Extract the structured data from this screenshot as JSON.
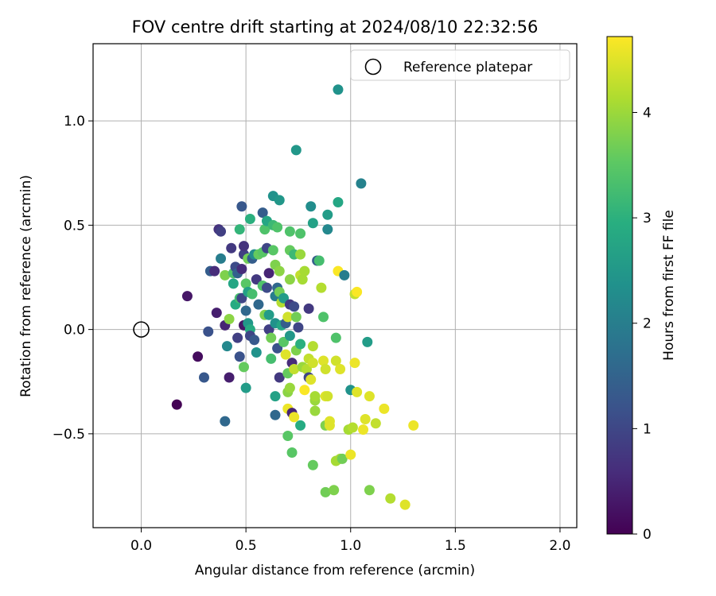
{
  "chart_data": {
    "type": "scatter",
    "title": "FOV centre drift starting at 2024/08/10 22:32:56",
    "xlabel": "Angular distance from reference (arcmin)",
    "ylabel": "Rotation from reference (arcmin)",
    "xlim": [
      -0.23,
      2.08
    ],
    "ylim": [
      -0.95,
      1.37
    ],
    "xticks": [
      0.0,
      0.5,
      1.0,
      1.5,
      2.0
    ],
    "xtick_labels": [
      "0.0",
      "0.5",
      "1.0",
      "1.5",
      "2.0"
    ],
    "yticks": [
      -0.5,
      0.0,
      0.5,
      1.0
    ],
    "ytick_labels": [
      "−0.5",
      "0.0",
      "0.5",
      "1.0"
    ],
    "grid": true,
    "legend": {
      "label": "Reference platepar",
      "placement": "top-right"
    },
    "reference_point": {
      "x": 0.0,
      "y": 0.0
    },
    "colorbar": {
      "label": "Hours from first FF file",
      "range": [
        0,
        4.72
      ],
      "ticks": [
        0,
        1,
        2,
        3,
        4
      ],
      "tick_labels": [
        "0",
        "1",
        "2",
        "3",
        "4"
      ],
      "colormap": "viridis"
    },
    "points": [
      {
        "x": 0.17,
        "y": -0.36,
        "c": 0.02
      },
      {
        "x": 0.22,
        "y": 0.16,
        "c": 0.3
      },
      {
        "x": 0.27,
        "y": -0.13,
        "c": 0.15
      },
      {
        "x": 0.3,
        "y": -0.23,
        "c": 1.3
      },
      {
        "x": 0.32,
        "y": -0.01,
        "c": 1.2
      },
      {
        "x": 0.33,
        "y": 0.28,
        "c": 1.4
      },
      {
        "x": 0.35,
        "y": 0.28,
        "c": 0.6
      },
      {
        "x": 0.36,
        "y": 0.08,
        "c": 0.4
      },
      {
        "x": 0.37,
        "y": 0.48,
        "c": 0.7
      },
      {
        "x": 0.38,
        "y": 0.47,
        "c": 0.9
      },
      {
        "x": 0.38,
        "y": 0.34,
        "c": 2.0
      },
      {
        "x": 0.4,
        "y": 0.26,
        "c": 3.8
      },
      {
        "x": 0.4,
        "y": 0.02,
        "c": 0.5
      },
      {
        "x": 0.4,
        "y": -0.44,
        "c": 1.6
      },
      {
        "x": 0.41,
        "y": -0.08,
        "c": 2.2
      },
      {
        "x": 0.42,
        "y": 0.05,
        "c": 3.9
      },
      {
        "x": 0.42,
        "y": -0.23,
        "c": 0.4
      },
      {
        "x": 0.43,
        "y": 0.39,
        "c": 0.8
      },
      {
        "x": 0.44,
        "y": 0.27,
        "c": 3.4
      },
      {
        "x": 0.44,
        "y": 0.22,
        "c": 2.8
      },
      {
        "x": 0.45,
        "y": 0.3,
        "c": 1.1
      },
      {
        "x": 0.45,
        "y": 0.12,
        "c": 2.9
      },
      {
        "x": 0.46,
        "y": 0.27,
        "c": 1.5
      },
      {
        "x": 0.46,
        "y": -0.04,
        "c": 0.9
      },
      {
        "x": 0.47,
        "y": 0.15,
        "c": 3.3
      },
      {
        "x": 0.47,
        "y": 0.48,
        "c": 3.1
      },
      {
        "x": 0.47,
        "y": -0.13,
        "c": 1.2
      },
      {
        "x": 0.48,
        "y": 0.59,
        "c": 1.3
      },
      {
        "x": 0.48,
        "y": 0.29,
        "c": 0.6
      },
      {
        "x": 0.48,
        "y": 0.15,
        "c": 1.0
      },
      {
        "x": 0.49,
        "y": 0.02,
        "c": 0.3
      },
      {
        "x": 0.49,
        "y": -0.18,
        "c": 3.6
      },
      {
        "x": 0.49,
        "y": 0.36,
        "c": 0.9
      },
      {
        "x": 0.49,
        "y": 0.4,
        "c": 0.7
      },
      {
        "x": 0.5,
        "y": -0.28,
        "c": 2.6
      },
      {
        "x": 0.5,
        "y": 0.22,
        "c": 3.5
      },
      {
        "x": 0.5,
        "y": 0.09,
        "c": 1.6
      },
      {
        "x": 0.51,
        "y": 0.34,
        "c": 3.7
      },
      {
        "x": 0.51,
        "y": 0.18,
        "c": 2.7
      },
      {
        "x": 0.51,
        "y": 0.03,
        "c": 2.5
      },
      {
        "x": 0.52,
        "y": 0.53,
        "c": 3.0
      },
      {
        "x": 0.52,
        "y": 0.0,
        "c": 2.9
      },
      {
        "x": 0.52,
        "y": -0.03,
        "c": 1.0
      },
      {
        "x": 0.53,
        "y": 0.34,
        "c": 1.4
      },
      {
        "x": 0.53,
        "y": 0.17,
        "c": 3.3
      },
      {
        "x": 0.54,
        "y": -0.05,
        "c": 1.3
      },
      {
        "x": 0.54,
        "y": 0.36,
        "c": 2.3
      },
      {
        "x": 0.55,
        "y": 0.24,
        "c": 0.8
      },
      {
        "x": 0.55,
        "y": -0.11,
        "c": 2.4
      },
      {
        "x": 0.56,
        "y": 0.36,
        "c": 3.6
      },
      {
        "x": 0.56,
        "y": 0.12,
        "c": 1.6
      },
      {
        "x": 0.58,
        "y": 0.37,
        "c": 3.5
      },
      {
        "x": 0.58,
        "y": 0.56,
        "c": 1.4
      },
      {
        "x": 0.58,
        "y": 0.21,
        "c": 3.4
      },
      {
        "x": 0.59,
        "y": 0.07,
        "c": 3.8
      },
      {
        "x": 0.59,
        "y": 0.48,
        "c": 3.4
      },
      {
        "x": 0.6,
        "y": 0.2,
        "c": 1.1
      },
      {
        "x": 0.6,
        "y": 0.39,
        "c": 1.0
      },
      {
        "x": 0.6,
        "y": 0.52,
        "c": 2.8
      },
      {
        "x": 0.61,
        "y": 0.07,
        "c": 2.6
      },
      {
        "x": 0.61,
        "y": 0.0,
        "c": 0.9
      },
      {
        "x": 0.61,
        "y": 0.27,
        "c": 0.5
      },
      {
        "x": 0.62,
        "y": -0.14,
        "c": 3.3
      },
      {
        "x": 0.62,
        "y": -0.04,
        "c": 3.7
      },
      {
        "x": 0.63,
        "y": 0.64,
        "c": 2.4
      },
      {
        "x": 0.63,
        "y": 0.5,
        "c": 3.2
      },
      {
        "x": 0.63,
        "y": 0.38,
        "c": 3.5
      },
      {
        "x": 0.64,
        "y": 0.31,
        "c": 3.8
      },
      {
        "x": 0.64,
        "y": 0.16,
        "c": 2.0
      },
      {
        "x": 0.64,
        "y": 0.03,
        "c": 2.4
      },
      {
        "x": 0.64,
        "y": -0.32,
        "c": 2.7
      },
      {
        "x": 0.64,
        "y": -0.41,
        "c": 1.6
      },
      {
        "x": 0.65,
        "y": 0.49,
        "c": 3.4
      },
      {
        "x": 0.65,
        "y": 0.2,
        "c": 1.6
      },
      {
        "x": 0.65,
        "y": -0.09,
        "c": 1.2
      },
      {
        "x": 0.66,
        "y": 0.62,
        "c": 2.5
      },
      {
        "x": 0.66,
        "y": 0.28,
        "c": 3.9
      },
      {
        "x": 0.66,
        "y": 0.18,
        "c": 3.7
      },
      {
        "x": 0.66,
        "y": -0.23,
        "c": 0.8
      },
      {
        "x": 0.67,
        "y": 0.13,
        "c": 4.2
      },
      {
        "x": 0.67,
        "y": 0.02,
        "c": 2.8
      },
      {
        "x": 0.68,
        "y": 0.15,
        "c": 2.6
      },
      {
        "x": 0.68,
        "y": -0.06,
        "c": 3.5
      },
      {
        "x": 0.69,
        "y": -0.12,
        "c": 4.5
      },
      {
        "x": 0.69,
        "y": 0.03,
        "c": 1.4
      },
      {
        "x": 0.7,
        "y": 0.06,
        "c": 4.4
      },
      {
        "x": 0.7,
        "y": -0.3,
        "c": 3.9
      },
      {
        "x": 0.7,
        "y": -0.21,
        "c": 3.6
      },
      {
        "x": 0.7,
        "y": -0.38,
        "c": 4.6
      },
      {
        "x": 0.7,
        "y": -0.51,
        "c": 3.5
      },
      {
        "x": 0.71,
        "y": 0.47,
        "c": 3.4
      },
      {
        "x": 0.71,
        "y": 0.38,
        "c": 3.6
      },
      {
        "x": 0.71,
        "y": 0.24,
        "c": 3.9
      },
      {
        "x": 0.71,
        "y": 0.12,
        "c": 0.8
      },
      {
        "x": 0.71,
        "y": -0.03,
        "c": 2.5
      },
      {
        "x": 0.71,
        "y": -0.28,
        "c": 4.0
      },
      {
        "x": 0.72,
        "y": -0.16,
        "c": 0.6
      },
      {
        "x": 0.72,
        "y": -0.4,
        "c": 0.5
      },
      {
        "x": 0.72,
        "y": -0.59,
        "c": 3.5
      },
      {
        "x": 0.73,
        "y": 0.36,
        "c": 3.2
      },
      {
        "x": 0.73,
        "y": 0.11,
        "c": 1.1
      },
      {
        "x": 0.73,
        "y": -0.19,
        "c": 4.3
      },
      {
        "x": 0.73,
        "y": -0.42,
        "c": 4.6
      },
      {
        "x": 0.74,
        "y": 0.86,
        "c": 2.5
      },
      {
        "x": 0.74,
        "y": 0.06,
        "c": 3.7
      },
      {
        "x": 0.74,
        "y": -0.1,
        "c": 3.8
      },
      {
        "x": 0.75,
        "y": 0.01,
        "c": 1.0
      },
      {
        "x": 0.76,
        "y": 0.46,
        "c": 3.4
      },
      {
        "x": 0.76,
        "y": 0.36,
        "c": 4.0
      },
      {
        "x": 0.76,
        "y": 0.26,
        "c": 4.3
      },
      {
        "x": 0.76,
        "y": -0.07,
        "c": 3.0
      },
      {
        "x": 0.76,
        "y": -0.46,
        "c": 2.9
      },
      {
        "x": 0.77,
        "y": -0.18,
        "c": 4.0
      },
      {
        "x": 0.77,
        "y": 0.24,
        "c": 4.1
      },
      {
        "x": 0.78,
        "y": 0.28,
        "c": 4.1
      },
      {
        "x": 0.78,
        "y": -0.29,
        "c": 4.7
      },
      {
        "x": 0.79,
        "y": -0.19,
        "c": 4.2
      },
      {
        "x": 0.8,
        "y": -0.14,
        "c": 4.3
      },
      {
        "x": 0.8,
        "y": 0.1,
        "c": 0.8
      },
      {
        "x": 0.8,
        "y": -0.23,
        "c": 1.0
      },
      {
        "x": 0.81,
        "y": 0.59,
        "c": 2.3
      },
      {
        "x": 0.81,
        "y": -0.24,
        "c": 4.5
      },
      {
        "x": 0.82,
        "y": -0.08,
        "c": 4.2
      },
      {
        "x": 0.82,
        "y": 0.51,
        "c": 2.7
      },
      {
        "x": 0.82,
        "y": -0.16,
        "c": 4.4
      },
      {
        "x": 0.82,
        "y": -0.65,
        "c": 3.6
      },
      {
        "x": 0.83,
        "y": -0.34,
        "c": 4.0
      },
      {
        "x": 0.83,
        "y": -0.39,
        "c": 4.0
      },
      {
        "x": 0.83,
        "y": -0.32,
        "c": 4.1
      },
      {
        "x": 0.84,
        "y": 0.33,
        "c": 1.4
      },
      {
        "x": 0.85,
        "y": 0.33,
        "c": 3.3
      },
      {
        "x": 0.86,
        "y": 0.2,
        "c": 4.2
      },
      {
        "x": 0.87,
        "y": 0.06,
        "c": 3.4
      },
      {
        "x": 0.87,
        "y": -0.15,
        "c": 4.5
      },
      {
        "x": 0.88,
        "y": -0.19,
        "c": 4.4
      },
      {
        "x": 0.88,
        "y": -0.32,
        "c": 4.5
      },
      {
        "x": 0.88,
        "y": -0.46,
        "c": 3.8
      },
      {
        "x": 0.88,
        "y": -0.78,
        "c": 3.7
      },
      {
        "x": 0.89,
        "y": -0.32,
        "c": 4.4
      },
      {
        "x": 0.89,
        "y": 0.55,
        "c": 2.6
      },
      {
        "x": 0.89,
        "y": 0.48,
        "c": 2.2
      },
      {
        "x": 0.9,
        "y": -0.46,
        "c": 4.5
      },
      {
        "x": 0.9,
        "y": -0.44,
        "c": 4.5
      },
      {
        "x": 0.92,
        "y": -0.77,
        "c": 3.8
      },
      {
        "x": 0.93,
        "y": -0.63,
        "c": 4.1
      },
      {
        "x": 0.93,
        "y": -0.15,
        "c": 4.4
      },
      {
        "x": 0.93,
        "y": -0.04,
        "c": 3.4
      },
      {
        "x": 0.94,
        "y": 0.61,
        "c": 2.8
      },
      {
        "x": 0.94,
        "y": 0.28,
        "c": 4.7
      },
      {
        "x": 0.94,
        "y": 1.15,
        "c": 2.4
      },
      {
        "x": 0.95,
        "y": -0.19,
        "c": 4.5
      },
      {
        "x": 0.95,
        "y": -0.62,
        "c": 4.1
      },
      {
        "x": 0.96,
        "y": -0.62,
        "c": 3.7
      },
      {
        "x": 0.97,
        "y": 0.26,
        "c": 2.0
      },
      {
        "x": 0.99,
        "y": -0.48,
        "c": 4.1
      },
      {
        "x": 1.0,
        "y": -0.6,
        "c": 4.6
      },
      {
        "x": 1.0,
        "y": -0.29,
        "c": 2.4
      },
      {
        "x": 1.01,
        "y": -0.47,
        "c": 4.2
      },
      {
        "x": 1.02,
        "y": -0.16,
        "c": 4.6
      },
      {
        "x": 1.02,
        "y": 0.17,
        "c": 4.3
      },
      {
        "x": 1.03,
        "y": 0.18,
        "c": 4.7
      },
      {
        "x": 1.03,
        "y": -0.3,
        "c": 4.5
      },
      {
        "x": 1.05,
        "y": 0.7,
        "c": 2.1
      },
      {
        "x": 1.06,
        "y": -0.48,
        "c": 4.6
      },
      {
        "x": 1.07,
        "y": -0.43,
        "c": 4.5
      },
      {
        "x": 1.08,
        "y": -0.06,
        "c": 2.6
      },
      {
        "x": 1.09,
        "y": -0.32,
        "c": 4.5
      },
      {
        "x": 1.09,
        "y": -0.77,
        "c": 3.8
      },
      {
        "x": 1.12,
        "y": -0.45,
        "c": 4.3
      },
      {
        "x": 1.16,
        "y": -0.38,
        "c": 4.6
      },
      {
        "x": 1.19,
        "y": -0.81,
        "c": 4.2
      },
      {
        "x": 1.26,
        "y": -0.84,
        "c": 4.5
      },
      {
        "x": 1.3,
        "y": -0.46,
        "c": 4.6
      }
    ]
  }
}
